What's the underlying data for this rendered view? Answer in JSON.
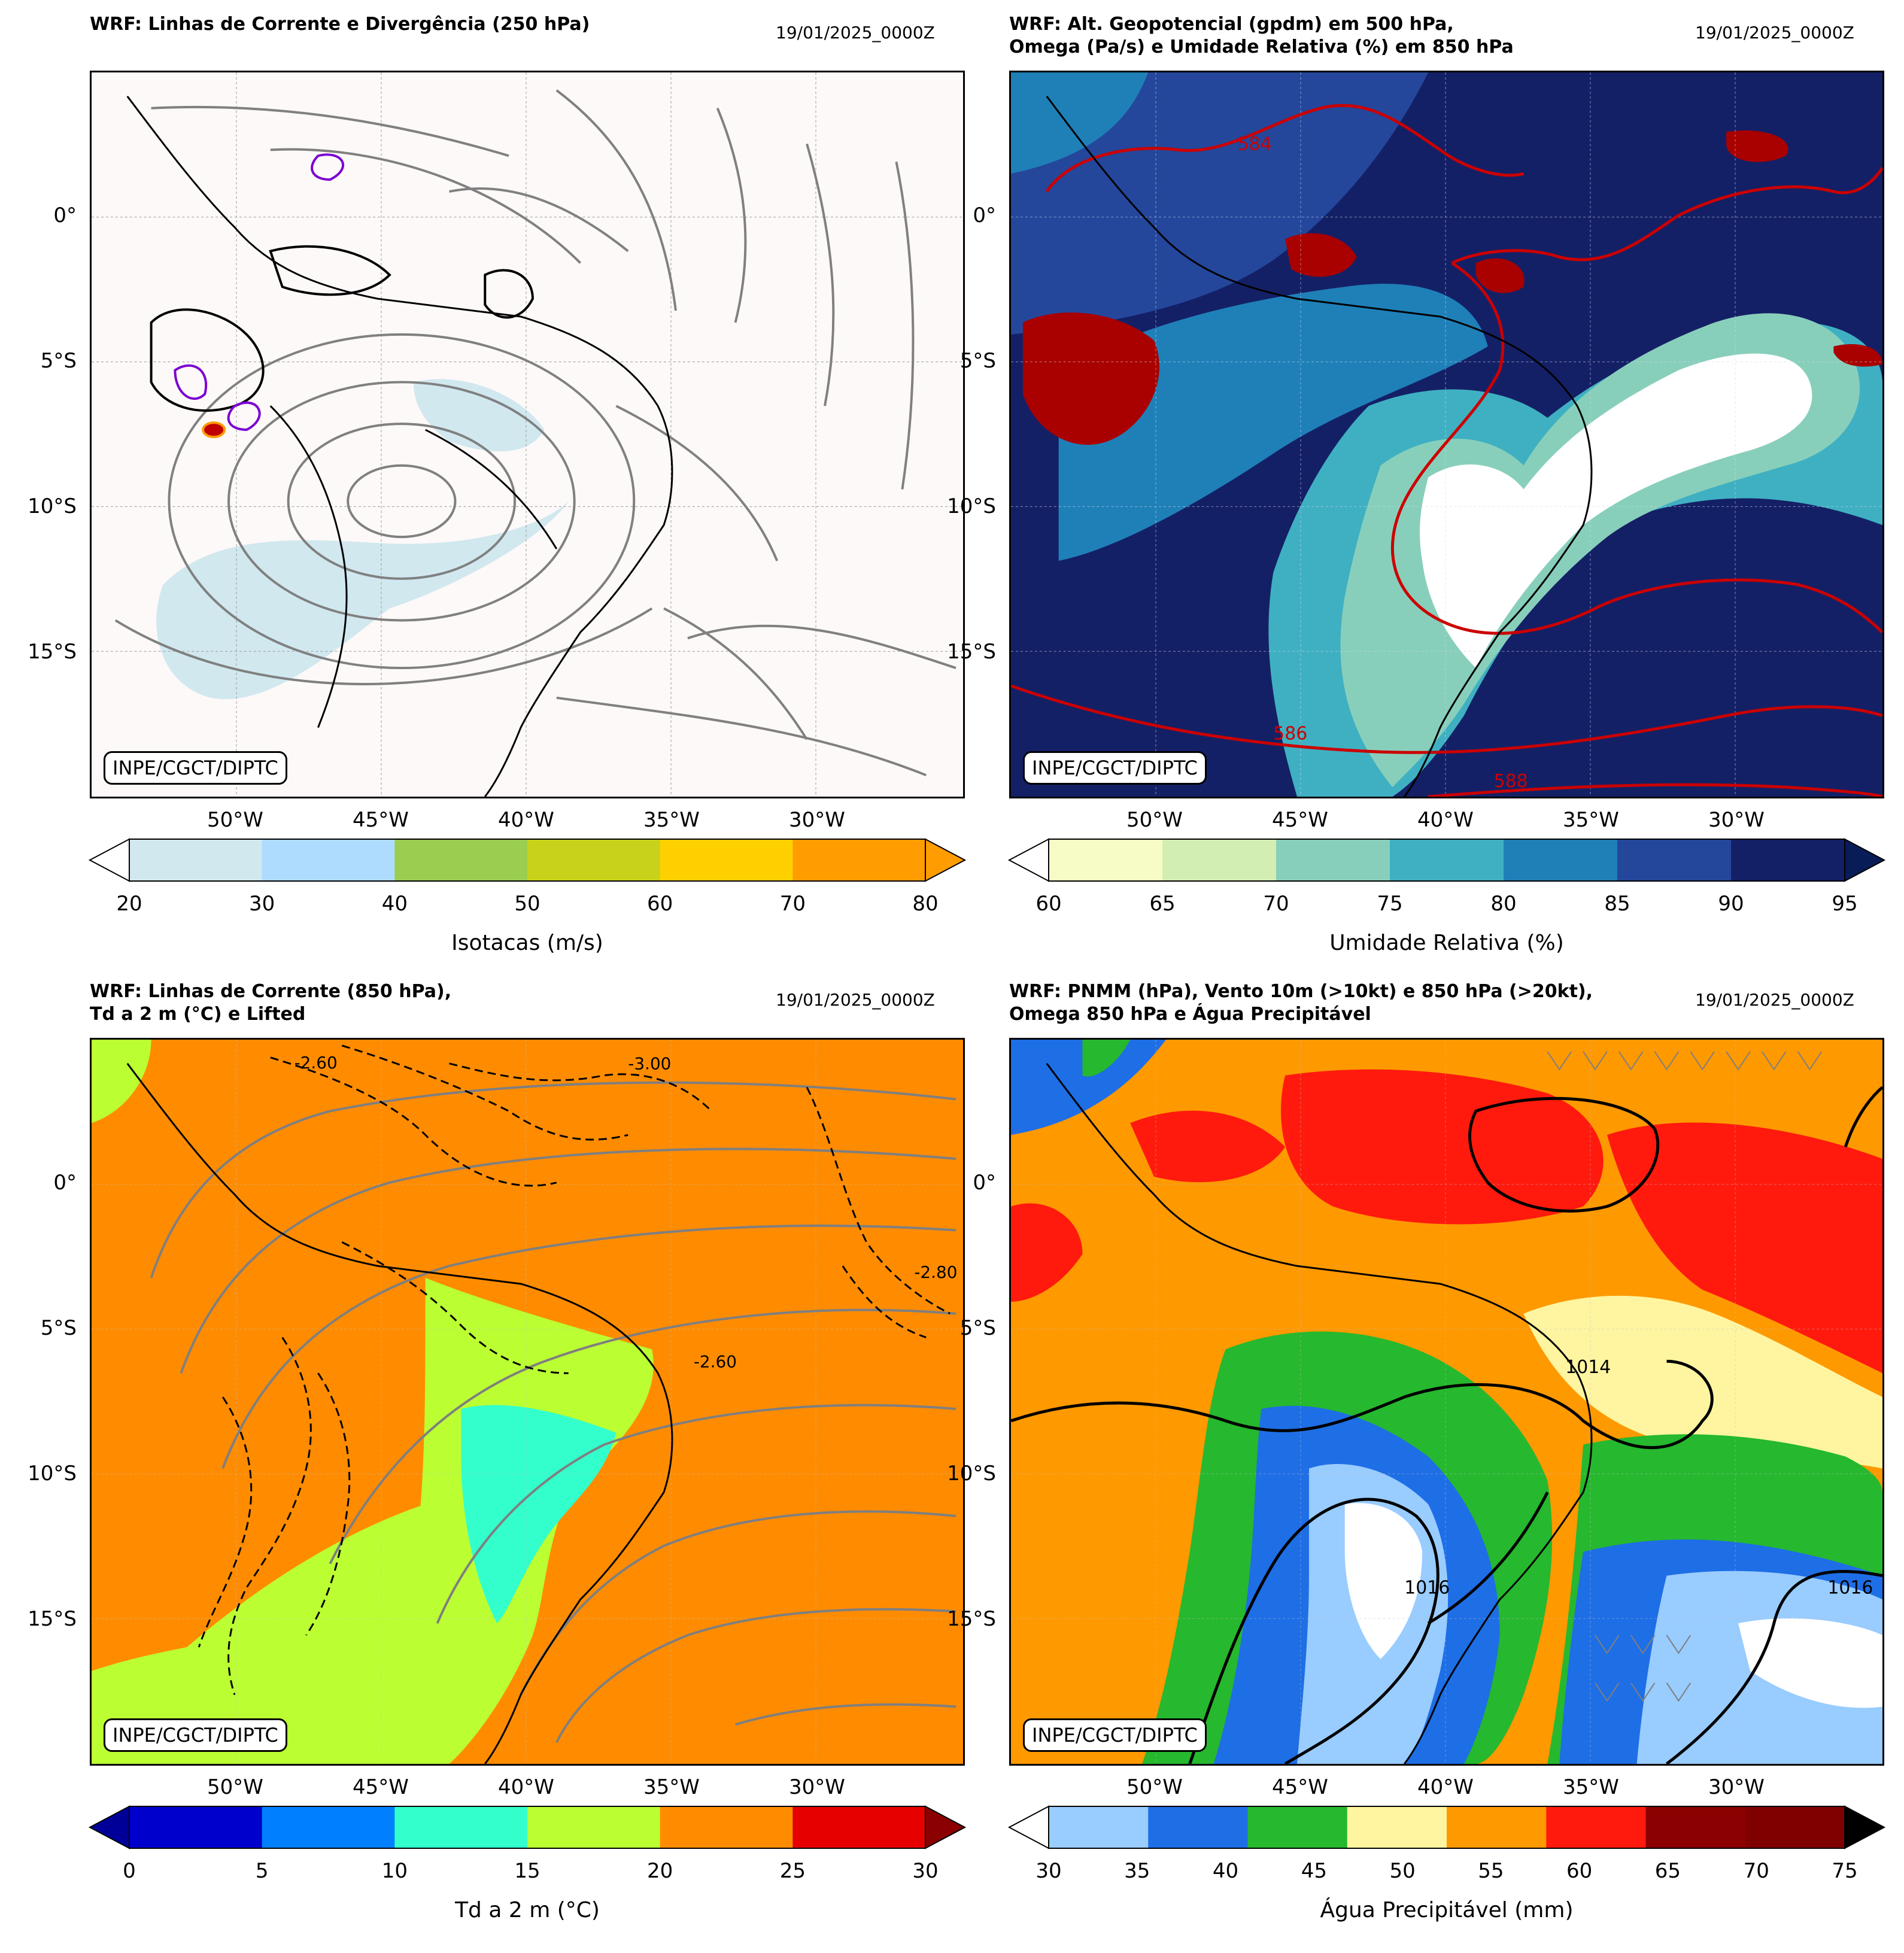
{
  "x_ticks": [
    "50°W",
    "45°W",
    "40°W",
    "35°W",
    "30°W"
  ],
  "y_ticks": [
    "0°",
    "5°S",
    "10°S",
    "15°S"
  ],
  "credit": "INPE/CGCT/DIPTC",
  "panels": [
    {
      "title": "WRF: Linhas de Corrente e Divergência (250 hPa)",
      "date": "19/01/2025_0000Z",
      "colorbar": {
        "label": "Isotacas (m/s)",
        "ticks": [
          "20",
          "30",
          "40",
          "50",
          "60",
          "70",
          "80"
        ],
        "colors": [
          "#d1e8ef",
          "#addcff",
          "#9acd50",
          "#c9d21a",
          "#ffd000",
          "#ff9d00"
        ],
        "ext_low": "#ffffff",
        "ext_high": "#ff9d00"
      }
    },
    {
      "title": "WRF: Alt. Geopotencial (gpdm) em 500 hPa,\nOmega (Pa/s) e Umidade Relativa (%) em 850 hPa",
      "date": "19/01/2025_0000Z",
      "contour_labels": [
        "584",
        "586",
        "588"
      ],
      "colorbar": {
        "label": "Umidade Relativa (%)",
        "ticks": [
          "60",
          "65",
          "70",
          "75",
          "80",
          "85",
          "90",
          "95"
        ],
        "colors": [
          "#f7fbc6",
          "#d3eeb3",
          "#88cfbb",
          "#3fb0c2",
          "#1f80b8",
          "#24479c",
          "#142066"
        ],
        "ext_low": "#ffffff",
        "ext_high": "#081d58"
      }
    },
    {
      "title": "WRF: Linhas de Corrente (850 hPa),\nTd a 2 m (°C) e Lifted",
      "date": "19/01/2025_0000Z",
      "contour_labels": [
        "-2.60",
        "-3.00",
        "-2.80"
      ],
      "colorbar": {
        "label": "Td a 2 m (°C)",
        "ticks": [
          "0",
          "5",
          "10",
          "15",
          "20",
          "25",
          "30"
        ],
        "colors": [
          "#0000cc",
          "#0080ff",
          "#33ffcc",
          "#bbff33",
          "#ff8c00",
          "#e60000"
        ],
        "ext_low": "#000099",
        "ext_high": "#8b0000"
      }
    },
    {
      "title": "WRF: PNMM (hPa), Vento 10m (>10kt) e 850 hPa (>20kt),\nOmega 850 hPa e Água Precipitável",
      "date": "19/01/2025_0000Z",
      "contour_labels": [
        "1014",
        "1016"
      ],
      "colorbar": {
        "label": "Água Precipitável (mm)",
        "ticks": [
          "30",
          "35",
          "40",
          "45",
          "50",
          "55",
          "60",
          "65",
          "70",
          "75"
        ],
        "colors": [
          "#99ccff",
          "#1e6ee6",
          "#26b82e",
          "#fff5a0",
          "#ff9900",
          "#ff1a0d",
          "#8b0000",
          "#800000"
        ],
        "ext_low": "#ffffff",
        "ext_high": "#000000"
      }
    }
  ]
}
